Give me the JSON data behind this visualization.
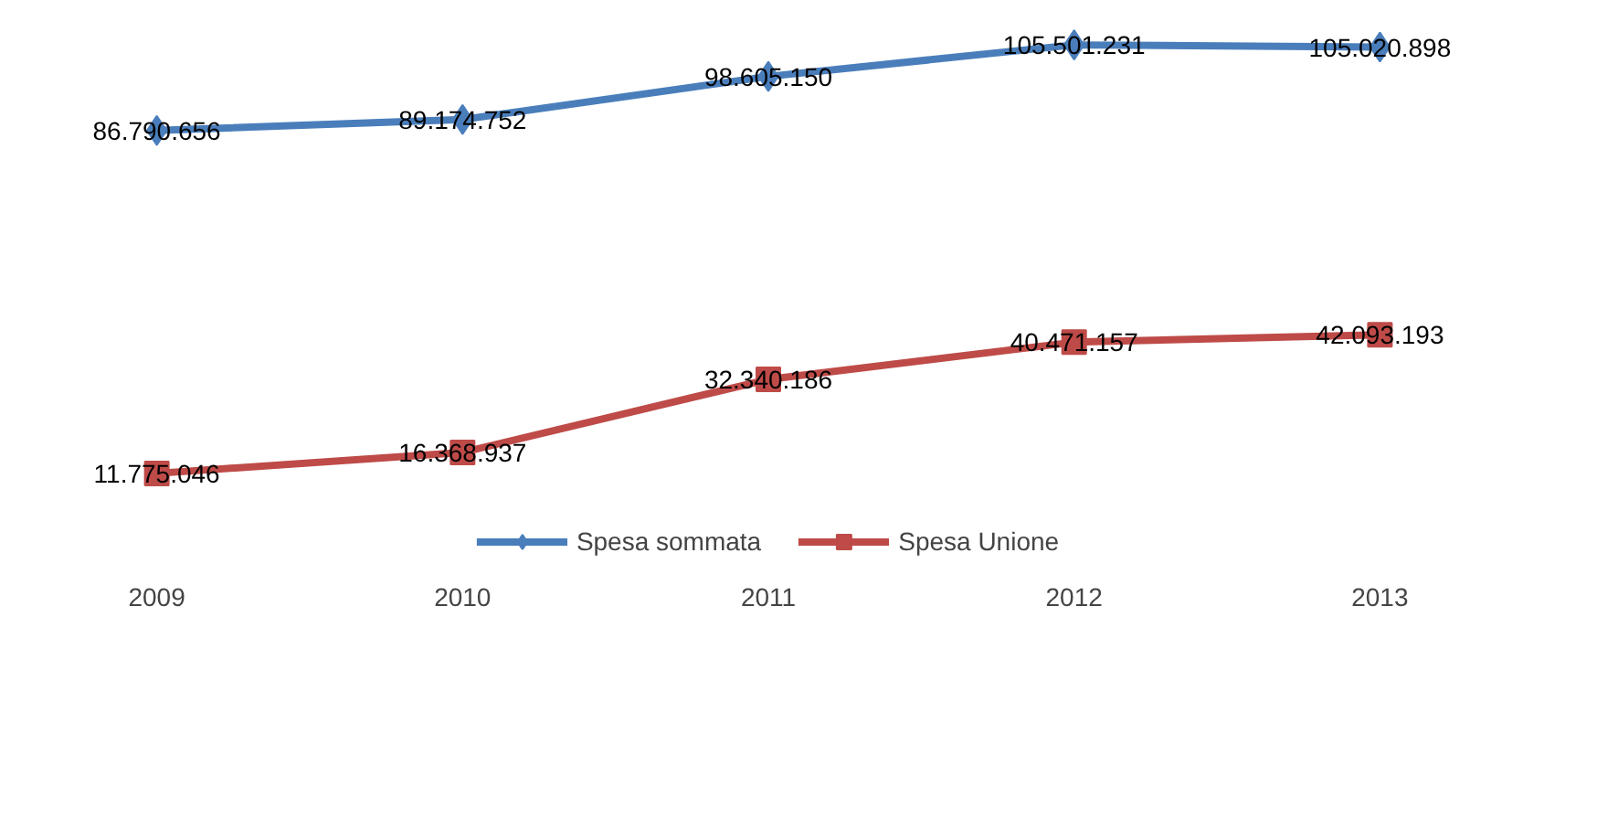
{
  "chart_data": {
    "type": "line",
    "categories": [
      "2009",
      "2010",
      "2011",
      "2012",
      "2013"
    ],
    "series": [
      {
        "name": "Spesa sommata",
        "color": "#4a7ebb",
        "marker": "diamond",
        "values": [
          86790656,
          89174752,
          98605150,
          105501231,
          105020898
        ],
        "value_labels": [
          "86.790.656",
          "89.174.752",
          "98.605.150",
          "105.501.231",
          "105.020.898"
        ]
      },
      {
        "name": "Spesa Unione",
        "color": "#be4b48",
        "marker": "square",
        "values": [
          11775046,
          16368937,
          32340186,
          40471157,
          42093193
        ],
        "value_labels": [
          "11.775.046",
          "16.368.937",
          "32.340.186",
          "40.471.157",
          "42.093.193"
        ]
      }
    ],
    "tick_labels": "x",
    "grid": false,
    "legend": "bottom",
    "line_style": "solid"
  }
}
